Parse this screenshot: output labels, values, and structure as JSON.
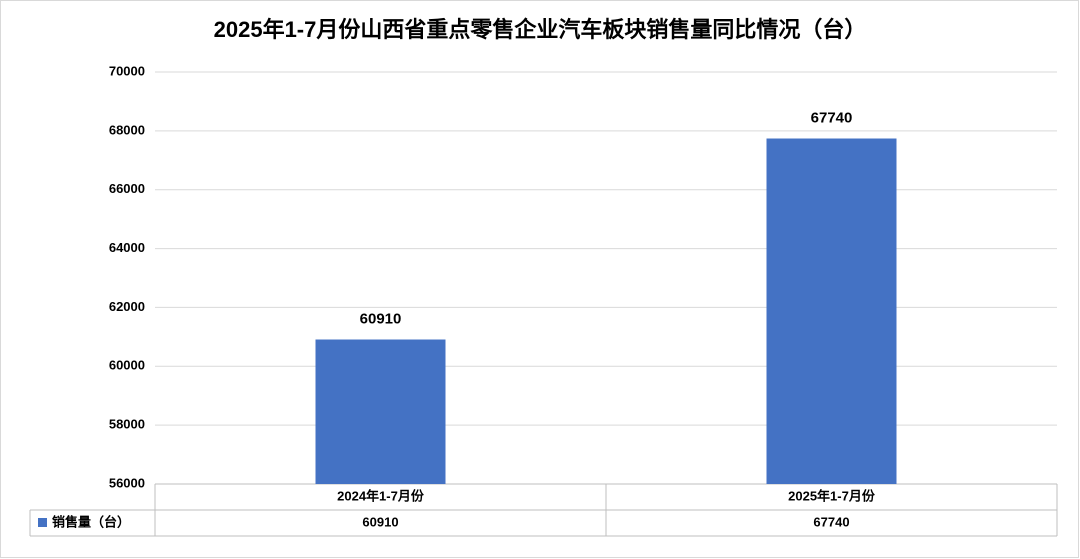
{
  "chart_data": {
    "type": "bar",
    "title": "2025年1-7月份山西省重点零售企业汽车板块销售量同比情况（台）",
    "categories": [
      "2024年1-7月份",
      "2025年1-7月份"
    ],
    "series": [
      {
        "name": "销售量（台）",
        "color": "#4472c4",
        "values": [
          60910,
          67740
        ]
      }
    ],
    "ylim": [
      56000,
      70000
    ],
    "yticks": [
      56000,
      58000,
      60000,
      62000,
      64000,
      66000,
      68000,
      70000
    ],
    "grid": true
  }
}
